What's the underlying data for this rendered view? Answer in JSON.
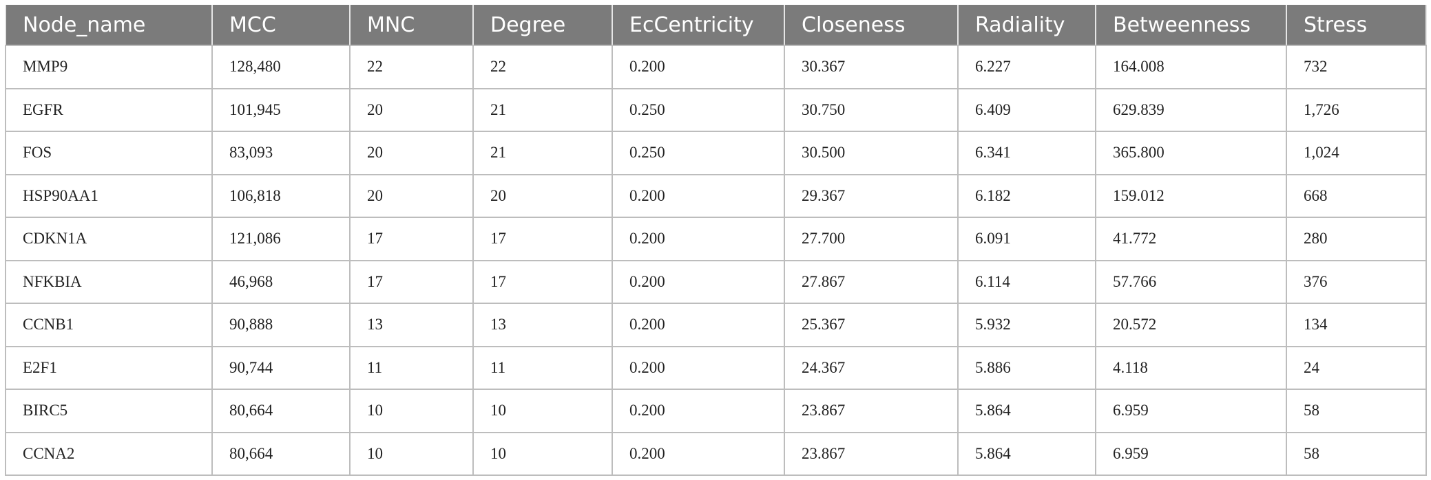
{
  "table": {
    "header": [
      "Node_name",
      "MCC",
      "MNC",
      "Degree",
      "EcCentricity",
      "Closeness",
      "Radiality",
      "Betweenness",
      "Stress"
    ],
    "rows": [
      [
        "MMP9",
        "128,480",
        "22",
        "22",
        "0.200",
        "30.367",
        "6.227",
        "164.008",
        "732"
      ],
      [
        "EGFR",
        "101,945",
        "20",
        "21",
        "0.250",
        "30.750",
        "6.409",
        "629.839",
        "1,726"
      ],
      [
        "FOS",
        "83,093",
        "20",
        "21",
        "0.250",
        "30.500",
        "6.341",
        "365.800",
        "1,024"
      ],
      [
        "HSP90AA1",
        "106,818",
        "20",
        "20",
        "0.200",
        "29.367",
        "6.182",
        "159.012",
        "668"
      ],
      [
        "CDKN1A",
        "121,086",
        "17",
        "17",
        "0.200",
        "27.700",
        "6.091",
        "41.772",
        "280"
      ],
      [
        "NFKBIA",
        "46,968",
        "17",
        "17",
        "0.200",
        "27.867",
        "6.114",
        "57.766",
        "376"
      ],
      [
        "CCNB1",
        "90,888",
        "13",
        "13",
        "0.200",
        "25.367",
        "5.932",
        "20.572",
        "134"
      ],
      [
        "E2F1",
        "90,744",
        "11",
        "11",
        "0.200",
        "24.367",
        "5.886",
        "4.118",
        "24"
      ],
      [
        "BIRC5",
        "80,664",
        "10",
        "10",
        "0.200",
        "23.867",
        "5.864",
        "6.959",
        "58"
      ],
      [
        "CCNA2",
        "80,664",
        "10",
        "10",
        "0.200",
        "23.867",
        "5.864",
        "6.959",
        "58"
      ]
    ]
  }
}
